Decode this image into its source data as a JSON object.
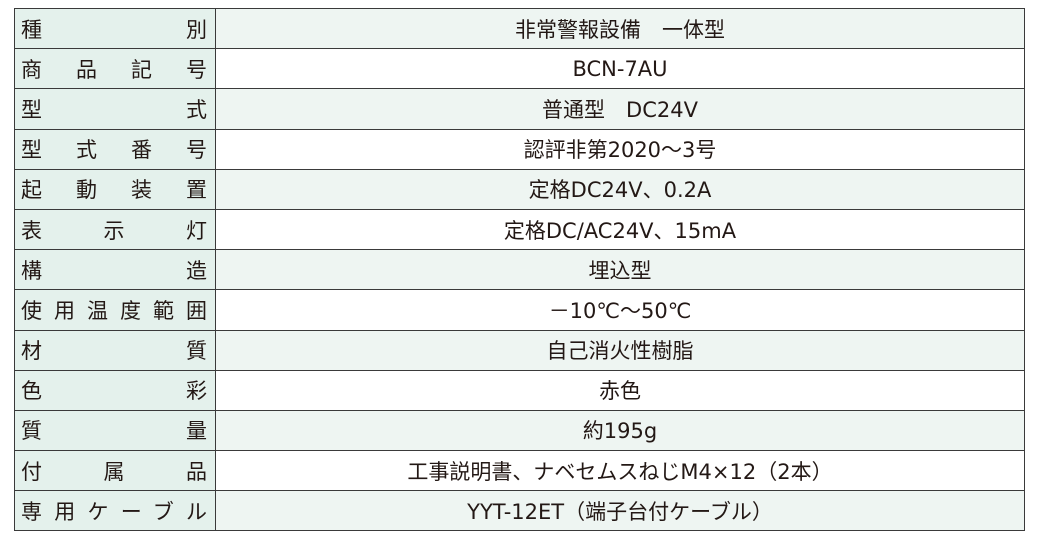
{
  "table": {
    "rows": [
      [
        "種別",
        "非常警報設備　一体型"
      ],
      [
        "商品記号",
        "BCN-7AU"
      ],
      [
        "型式",
        "普通型　DC24V"
      ],
      [
        "型式番号",
        "認評非第2020～3号"
      ],
      [
        "起動装置",
        "定格DC24V、0.2A"
      ],
      [
        "表示灯",
        "定格DC/AC24V、15mA"
      ],
      [
        "構造",
        "埋込型"
      ],
      [
        "使用温度範囲",
        "－10℃～50℃"
      ],
      [
        "材質",
        "自己消火性樹脂"
      ],
      [
        "色彩",
        "赤色"
      ],
      [
        "質量",
        "約195g"
      ],
      [
        "付属品",
        "工事説明書、ナベセムスねじM4×12（2本）"
      ],
      [
        "専用ケーブル",
        "YYT-12ET（端子台付ケーブル）"
      ]
    ]
  }
}
